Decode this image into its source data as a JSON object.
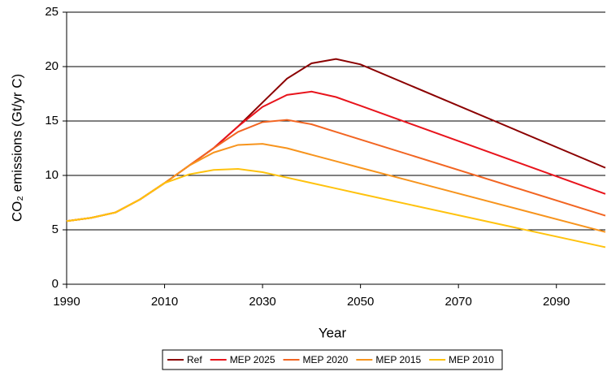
{
  "chart_data": {
    "type": "line",
    "x_label": "Year",
    "y_label": "CO₂ emissions (Gt/yr C)",
    "x": [
      1990,
      1995,
      2000,
      2005,
      2010,
      2015,
      2020,
      2025,
      2030,
      2035,
      2040,
      2045,
      2050,
      2100
    ],
    "series": [
      {
        "name": "Ref",
        "color": "#8b0000",
        "values": [
          5.8,
          6.1,
          6.6,
          7.8,
          9.3,
          10.9,
          12.5,
          14.5,
          16.7,
          18.9,
          20.3,
          20.7,
          20.2,
          10.7
        ]
      },
      {
        "name": "MEP 2025",
        "color": "#e8141c",
        "values": [
          5.8,
          6.1,
          6.6,
          7.8,
          9.3,
          10.9,
          12.5,
          14.5,
          16.3,
          17.4,
          17.7,
          17.2,
          16.4,
          8.3
        ]
      },
      {
        "name": "MEP 2020",
        "color": "#f26522",
        "values": [
          5.8,
          6.1,
          6.6,
          7.8,
          9.3,
          10.9,
          12.5,
          14.0,
          14.9,
          15.1,
          14.7,
          14.0,
          13.3,
          6.3
        ]
      },
      {
        "name": "MEP 2015",
        "color": "#f7941d",
        "values": [
          5.8,
          6.1,
          6.6,
          7.8,
          9.3,
          10.9,
          12.1,
          12.8,
          12.9,
          12.5,
          11.9,
          11.3,
          10.7,
          4.8
        ]
      },
      {
        "name": "MEP 2010",
        "color": "#ffc20e",
        "values": [
          5.8,
          6.1,
          6.6,
          7.8,
          9.3,
          10.1,
          10.5,
          10.6,
          10.3,
          9.8,
          9.3,
          8.8,
          8.3,
          3.4
        ]
      }
    ],
    "xlim": [
      1990,
      2100
    ],
    "xticks": [
      1990,
      2010,
      2030,
      2050,
      2070,
      2090
    ],
    "ylim": [
      0,
      25
    ],
    "yticks": [
      0,
      5,
      10,
      15,
      20,
      25
    ],
    "grid": true,
    "legend": "bottom"
  }
}
